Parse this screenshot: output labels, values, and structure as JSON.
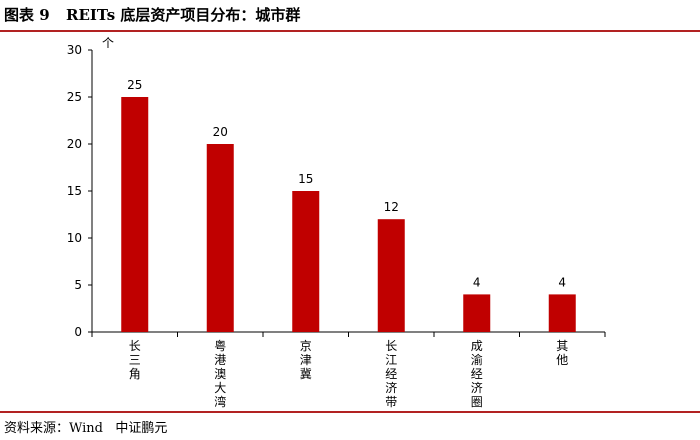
{
  "header": {
    "figure_label": "图表 9",
    "title": "REITs 底层资产项目分布：城市群"
  },
  "footer": {
    "source": "资料来源：Wind   中证鹏元"
  },
  "colors": {
    "bar": "#c00000",
    "rule": "#b22222",
    "axis": "#000000"
  },
  "chart_data": {
    "type": "bar",
    "title": "REITs 底层资产项目分布：城市群",
    "xlabel": "",
    "ylabel": "个",
    "categories": [
      "长三角",
      "粤港澳大湾",
      "京津冀",
      "长江经济带",
      "成渝经济圈",
      "其他"
    ],
    "values": [
      25,
      20,
      15,
      12,
      4,
      4
    ],
    "data_labels": [
      "25",
      "20",
      "15",
      "12",
      "4",
      "4"
    ],
    "ylim": [
      0,
      30
    ],
    "yticks": [
      0,
      5,
      10,
      15,
      20,
      25,
      30
    ],
    "grid": false,
    "legend": "none"
  }
}
